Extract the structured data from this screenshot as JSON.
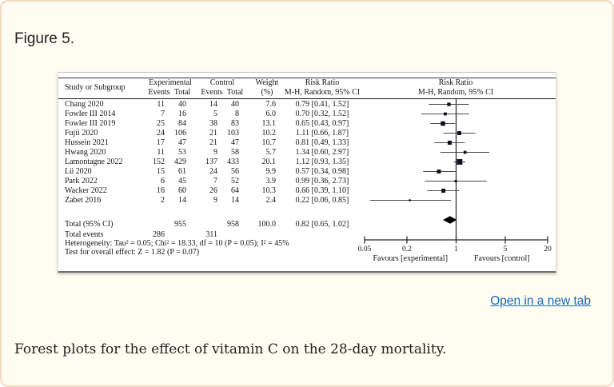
{
  "page": {
    "figure_label": "Figure 5.",
    "open_link_label": "Open in a new tab",
    "caption": "Forest plots for the effect of vitamin C on the 28-day mortality."
  },
  "colors": {
    "card_bg": "#fffdf2",
    "card_border": "#f5d8c2",
    "link_blue": "#1668b5",
    "ink": "#1f1f1f",
    "figure_ink": "#161616",
    "marker_fill": "#10101c",
    "ci_line": "#4a4a4a",
    "axis_line": "#222222"
  },
  "chart_data": {
    "type": "forest",
    "header": {
      "study": "Study or Subgroup",
      "group_experimental": "Experimental",
      "group_control": "Control",
      "events": "Events",
      "total": "Total",
      "weight_line1": "Weight",
      "weight_line2": "(%)",
      "rr_line1": "Risk Ratio",
      "rr_line2": "M-H, Random, 95% CI",
      "plot_rr_line1": "Risk Ratio",
      "plot_rr_line2": "M-H, Random, 95% CI"
    },
    "studies": [
      {
        "name": "Chang 2020",
        "e_events": "11",
        "e_total": "40",
        "c_events": "14",
        "c_total": "40",
        "weight": "7.6",
        "rr": 0.79,
        "lo": 0.41,
        "hi": 1.52,
        "ci_label": "0.79 [0.41, 1.52]"
      },
      {
        "name": "Fowler III 2014",
        "e_events": "7",
        "e_total": "16",
        "c_events": "5",
        "c_total": "8",
        "weight": "6.0",
        "rr": 0.7,
        "lo": 0.32,
        "hi": 1.52,
        "ci_label": "0.70 [0.32, 1.52]"
      },
      {
        "name": "Fowler III 2019",
        "e_events": "25",
        "e_total": "84",
        "c_events": "38",
        "c_total": "83",
        "weight": "13.1",
        "rr": 0.65,
        "lo": 0.43,
        "hi": 0.97,
        "ci_label": "0.65 [0.43, 0.97]"
      },
      {
        "name": "Fujii 2020",
        "e_events": "24",
        "e_total": "106",
        "c_events": "21",
        "c_total": "103",
        "weight": "10.2",
        "rr": 1.11,
        "lo": 0.66,
        "hi": 1.87,
        "ci_label": "1.11 [0.66, 1.87]"
      },
      {
        "name": "Hussein 2021",
        "e_events": "17",
        "e_total": "47",
        "c_events": "21",
        "c_total": "47",
        "weight": "10.7",
        "rr": 0.81,
        "lo": 0.49,
        "hi": 1.33,
        "ci_label": "0.81 [0.49, 1.33]"
      },
      {
        "name": "Hwang 2020",
        "e_events": "11",
        "e_total": "53",
        "c_events": "9",
        "c_total": "58",
        "weight": "5.7",
        "rr": 1.34,
        "lo": 0.6,
        "hi": 2.97,
        "ci_label": "1.34 [0.60, 2.97]"
      },
      {
        "name": "Lamontagne 2022",
        "e_events": "152",
        "e_total": "429",
        "c_events": "137",
        "c_total": "433",
        "weight": "20.1",
        "rr": 1.12,
        "lo": 0.93,
        "hi": 1.35,
        "ci_label": "1.12 [0.93, 1.35]"
      },
      {
        "name": "Lü 2020",
        "e_events": "15",
        "e_total": "61",
        "c_events": "24",
        "c_total": "56",
        "weight": "9.9",
        "rr": 0.57,
        "lo": 0.34,
        "hi": 0.98,
        "ci_label": "0.57 [0.34, 0.98]"
      },
      {
        "name": "Park 2022",
        "e_events": "6",
        "e_total": "45",
        "c_events": "7",
        "c_total": "52",
        "weight": "3.9",
        "rr": 0.99,
        "lo": 0.36,
        "hi": 2.73,
        "ci_label": "0.99 [0.36, 2.73]"
      },
      {
        "name": "Wacker 2022",
        "e_events": "16",
        "e_total": "60",
        "c_events": "26",
        "c_total": "64",
        "weight": "10.3",
        "rr": 0.66,
        "lo": 0.39,
        "hi": 1.1,
        "ci_label": "0.66 [0.39, 1.10]"
      },
      {
        "name": "Zabet 2016",
        "e_events": "2",
        "e_total": "14",
        "c_events": "9",
        "c_total": "14",
        "weight": "2.4",
        "rr": 0.22,
        "lo": 0.06,
        "hi": 0.85,
        "ci_label": "0.22 [0.06, 0.85]"
      }
    ],
    "total": {
      "name": "Total (95% CI)",
      "e_total": "955",
      "c_total": "958",
      "weight": "100.0",
      "rr": 0.82,
      "lo": 0.65,
      "hi": 1.02,
      "ci_label": "0.82 [0.65, 1.02]"
    },
    "total_events": {
      "name": "Total events",
      "e_events": "286",
      "c_events": "311"
    },
    "heterogeneity": "Heterogeneity: Tau² = 0.05; Chi² = 18.33, df = 10 (P = 0.05); I² = 45%",
    "overall_effect": "Test for overall effect: Z = 1.82 (P = 0.07)",
    "axis": {
      "scale": "log",
      "min": 0.05,
      "max": 20,
      "ticks": [
        "0.05",
        "0.2",
        "1",
        "5",
        "20"
      ]
    },
    "favours_left": "Favours [experimental]",
    "favours_right": "Favours [control]"
  }
}
